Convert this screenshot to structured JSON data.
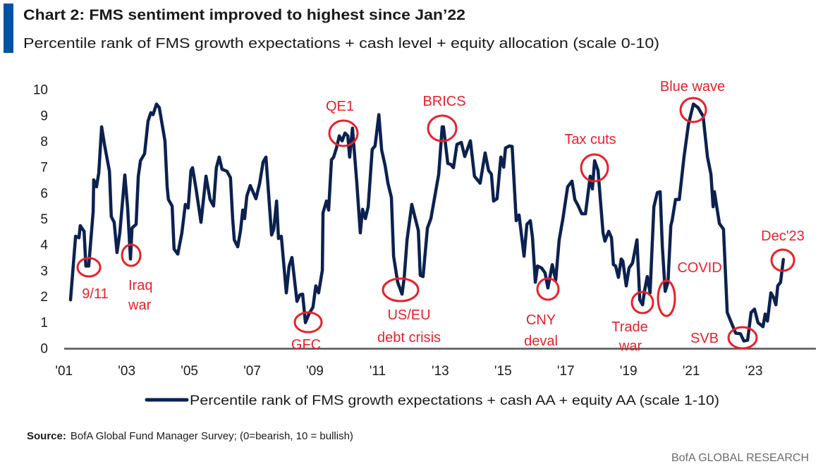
{
  "header": {
    "title": "Chart 2: FMS sentiment improved to highest since Jan’22",
    "subtitle": "Percentile rank of FMS growth expectations + cash level + equity allocation (scale 0-10)"
  },
  "footer": {
    "source_label": "Source:",
    "source_text": "BofA Global Fund Manager Survey; (0=bearish, 10 = bullish)",
    "brand": "BofA GLOBAL RESEARCH"
  },
  "colors": {
    "accent_bar": "#0052a3",
    "line": "#0b2150",
    "annotation": "#e8212a",
    "axis": "#555555"
  },
  "chart_data": {
    "type": "line",
    "title": "Chart 2: FMS sentiment improved to highest since Jan’22",
    "subtitle": "Percentile rank of FMS growth expectations + cash level + equity allocation (scale 0-10)",
    "xlabel": "",
    "ylabel": "",
    "ylim": [
      0,
      10
    ],
    "xlim": [
      2001,
      2025.4
    ],
    "grid": false,
    "legend_position": "bottom",
    "x_ticks": [
      {
        "year": 2001,
        "label": "'01"
      },
      {
        "year": 2003,
        "label": "'03"
      },
      {
        "year": 2005,
        "label": "'05"
      },
      {
        "year": 2007,
        "label": "'07"
      },
      {
        "year": 2009,
        "label": "'09"
      },
      {
        "year": 2011,
        "label": "'11"
      },
      {
        "year": 2013,
        "label": "'13"
      },
      {
        "year": 2015,
        "label": "'15"
      },
      {
        "year": 2017,
        "label": "'17"
      },
      {
        "year": 2019,
        "label": "'19"
      },
      {
        "year": 2021,
        "label": "'21"
      },
      {
        "year": 2023,
        "label": "'23"
      }
    ],
    "y_ticks": [
      "0",
      "1",
      "2",
      "3",
      "4",
      "5",
      "6",
      "7",
      "8",
      "9",
      "10"
    ],
    "series": [
      {
        "name": "Percentile rank of FMS growth expectations + cash AA + equity AA (scale 1-10)",
        "points": [
          [
            2001.21,
            1.86
          ],
          [
            2001.37,
            4.32
          ],
          [
            2001.48,
            4.26
          ],
          [
            2001.52,
            4.73
          ],
          [
            2001.64,
            4.51
          ],
          [
            2001.7,
            3.17
          ],
          [
            2001.79,
            3.17
          ],
          [
            2001.93,
            5.27
          ],
          [
            2001.95,
            6.5
          ],
          [
            2002.04,
            6.23
          ],
          [
            2002.11,
            6.78
          ],
          [
            2002.2,
            8.55
          ],
          [
            2002.29,
            7.87
          ],
          [
            2002.45,
            6.83
          ],
          [
            2002.51,
            5.08
          ],
          [
            2002.6,
            4.86
          ],
          [
            2002.69,
            3.69
          ],
          [
            2002.78,
            4.45
          ],
          [
            2002.94,
            6.69
          ],
          [
            2003.03,
            5.41
          ],
          [
            2003.12,
            3.44
          ],
          [
            2003.17,
            4.64
          ],
          [
            2003.3,
            4.78
          ],
          [
            2003.37,
            6.64
          ],
          [
            2003.44,
            7.24
          ],
          [
            2003.57,
            7.51
          ],
          [
            2003.68,
            8.77
          ],
          [
            2003.77,
            9.1
          ],
          [
            2003.84,
            9.02
          ],
          [
            2003.95,
            9.43
          ],
          [
            2004.04,
            9.29
          ],
          [
            2004.22,
            8.01
          ],
          [
            2004.29,
            6.23
          ],
          [
            2004.33,
            5.74
          ],
          [
            2004.45,
            5.49
          ],
          [
            2004.51,
            3.83
          ],
          [
            2004.63,
            3.63
          ],
          [
            2004.76,
            4.45
          ],
          [
            2004.87,
            5.55
          ],
          [
            2004.96,
            5.41
          ],
          [
            2005.05,
            6.86
          ],
          [
            2005.1,
            6.97
          ],
          [
            2005.21,
            6.17
          ],
          [
            2005.37,
            4.86
          ],
          [
            2005.53,
            6.64
          ],
          [
            2005.66,
            5.74
          ],
          [
            2005.77,
            5.49
          ],
          [
            2005.86,
            6.97
          ],
          [
            2005.95,
            7.38
          ],
          [
            2006.04,
            6.91
          ],
          [
            2006.2,
            6.83
          ],
          [
            2006.31,
            6.58
          ],
          [
            2006.38,
            5.0
          ],
          [
            2006.43,
            4.18
          ],
          [
            2006.54,
            3.91
          ],
          [
            2006.63,
            4.54
          ],
          [
            2006.7,
            5.33
          ],
          [
            2006.76,
            5.0
          ],
          [
            2006.83,
            5.87
          ],
          [
            2006.94,
            6.28
          ],
          [
            2007.12,
            5.77
          ],
          [
            2007.24,
            6.37
          ],
          [
            2007.35,
            7.19
          ],
          [
            2007.44,
            7.38
          ],
          [
            2007.62,
            4.37
          ],
          [
            2007.69,
            4.59
          ],
          [
            2007.78,
            5.68
          ],
          [
            2007.84,
            4.23
          ],
          [
            2007.93,
            4.32
          ],
          [
            2008.09,
            2.13
          ],
          [
            2008.18,
            3.17
          ],
          [
            2008.27,
            3.5
          ],
          [
            2008.43,
            1.8
          ],
          [
            2008.52,
            2.05
          ],
          [
            2008.61,
            2.08
          ],
          [
            2008.7,
            0.98
          ],
          [
            2008.81,
            1.31
          ],
          [
            2008.94,
            1.58
          ],
          [
            2009.03,
            2.4
          ],
          [
            2009.12,
            2.13
          ],
          [
            2009.24,
            3.01
          ],
          [
            2009.26,
            5.22
          ],
          [
            2009.37,
            5.68
          ],
          [
            2009.44,
            5.33
          ],
          [
            2009.53,
            7.27
          ],
          [
            2009.6,
            7.38
          ],
          [
            2009.69,
            7.73
          ],
          [
            2009.78,
            8.2
          ],
          [
            2009.87,
            8.01
          ],
          [
            2009.96,
            8.31
          ],
          [
            2010.05,
            8.2
          ],
          [
            2010.11,
            7.38
          ],
          [
            2010.2,
            8.5
          ],
          [
            2010.34,
            6.37
          ],
          [
            2010.45,
            4.45
          ],
          [
            2010.52,
            5.36
          ],
          [
            2010.61,
            5.0
          ],
          [
            2010.7,
            5.46
          ],
          [
            2010.83,
            7.68
          ],
          [
            2010.92,
            7.81
          ],
          [
            2011.04,
            9.02
          ],
          [
            2011.13,
            7.65
          ],
          [
            2011.24,
            7.05
          ],
          [
            2011.33,
            6.37
          ],
          [
            2011.44,
            5.82
          ],
          [
            2011.51,
            3.55
          ],
          [
            2011.64,
            2.54
          ],
          [
            2011.78,
            2.08
          ],
          [
            2011.85,
            2.73
          ],
          [
            2011.94,
            4.18
          ],
          [
            2012.09,
            5.55
          ],
          [
            2012.3,
            4.54
          ],
          [
            2012.36,
            2.81
          ],
          [
            2012.45,
            2.76
          ],
          [
            2012.59,
            4.64
          ],
          [
            2012.7,
            5.0
          ],
          [
            2012.95,
            6.72
          ],
          [
            2013.06,
            8.55
          ],
          [
            2013.1,
            8.55
          ],
          [
            2013.24,
            7.13
          ],
          [
            2013.33,
            7.1
          ],
          [
            2013.42,
            6.97
          ],
          [
            2013.53,
            7.87
          ],
          [
            2013.67,
            7.95
          ],
          [
            2013.78,
            7.4
          ],
          [
            2013.96,
            8.01
          ],
          [
            2014.09,
            6.64
          ],
          [
            2014.27,
            6.37
          ],
          [
            2014.43,
            7.54
          ],
          [
            2014.54,
            6.86
          ],
          [
            2014.63,
            6.72
          ],
          [
            2014.7,
            5.68
          ],
          [
            2014.81,
            5.77
          ],
          [
            2014.93,
            7.38
          ],
          [
            2015.02,
            6.99
          ],
          [
            2015.08,
            7.73
          ],
          [
            2015.2,
            7.81
          ],
          [
            2015.29,
            7.79
          ],
          [
            2015.42,
            4.92
          ],
          [
            2015.51,
            5.14
          ],
          [
            2015.67,
            3.55
          ],
          [
            2015.76,
            4.78
          ],
          [
            2015.87,
            4.92
          ],
          [
            2015.94,
            4.26
          ],
          [
            2016.03,
            2.54
          ],
          [
            2016.1,
            3.17
          ],
          [
            2016.23,
            3.09
          ],
          [
            2016.34,
            2.9
          ],
          [
            2016.43,
            2.32
          ],
          [
            2016.57,
            3.22
          ],
          [
            2016.68,
            2.62
          ],
          [
            2016.79,
            4.18
          ],
          [
            2016.91,
            5.0
          ],
          [
            2017.06,
            6.23
          ],
          [
            2017.2,
            6.45
          ],
          [
            2017.29,
            5.74
          ],
          [
            2017.4,
            5.49
          ],
          [
            2017.51,
            5.19
          ],
          [
            2017.63,
            5.19
          ],
          [
            2017.78,
            6.64
          ],
          [
            2017.85,
            6.15
          ],
          [
            2017.92,
            7.24
          ],
          [
            2018.03,
            6.86
          ],
          [
            2018.19,
            4.45
          ],
          [
            2018.25,
            4.13
          ],
          [
            2018.37,
            4.51
          ],
          [
            2018.46,
            4.26
          ],
          [
            2018.52,
            3.22
          ],
          [
            2018.59,
            3.17
          ],
          [
            2018.68,
            2.73
          ],
          [
            2018.77,
            3.44
          ],
          [
            2018.82,
            3.36
          ],
          [
            2018.93,
            2.4
          ],
          [
            2019.02,
            3.09
          ],
          [
            2019.13,
            3.28
          ],
          [
            2019.27,
            4.18
          ],
          [
            2019.36,
            1.86
          ],
          [
            2019.45,
            1.67
          ],
          [
            2019.51,
            2.19
          ],
          [
            2019.6,
            2.76
          ],
          [
            2019.69,
            2.13
          ],
          [
            2019.81,
            5.46
          ],
          [
            2019.92,
            6.01
          ],
          [
            2020.01,
            6.04
          ],
          [
            2020.08,
            3.91
          ],
          [
            2020.17,
            2.19
          ],
          [
            2020.26,
            2.54
          ],
          [
            2020.35,
            4.73
          ],
          [
            2020.39,
            4.92
          ],
          [
            2020.5,
            5.74
          ],
          [
            2020.62,
            5.74
          ],
          [
            2020.77,
            7.38
          ],
          [
            2020.91,
            8.63
          ],
          [
            2021.07,
            9.43
          ],
          [
            2021.22,
            9.29
          ],
          [
            2021.38,
            8.96
          ],
          [
            2021.52,
            7.38
          ],
          [
            2021.63,
            6.72
          ],
          [
            2021.7,
            5.46
          ],
          [
            2021.74,
            6.04
          ],
          [
            2021.9,
            4.81
          ],
          [
            2022.03,
            4.59
          ],
          [
            2022.15,
            1.37
          ],
          [
            2022.28,
            0.98
          ],
          [
            2022.42,
            0.57
          ],
          [
            2022.57,
            0.55
          ],
          [
            2022.68,
            0.27
          ],
          [
            2022.8,
            0.3
          ],
          [
            2022.91,
            1.37
          ],
          [
            2023.02,
            1.5
          ],
          [
            2023.13,
            0.98
          ],
          [
            2023.29,
            0.82
          ],
          [
            2023.36,
            1.31
          ],
          [
            2023.43,
            1.04
          ],
          [
            2023.54,
            2.13
          ],
          [
            2023.63,
            1.94
          ],
          [
            2023.7,
            1.67
          ],
          [
            2023.76,
            2.4
          ],
          [
            2023.85,
            2.54
          ],
          [
            2023.94,
            3.42
          ]
        ]
      }
    ],
    "annotations": [
      {
        "label": "9/11",
        "year": 2001.75,
        "value": 3.2
      },
      {
        "label": "Iraq war",
        "year": 2003.12,
        "value": 3.6
      },
      {
        "label": "GFC",
        "year": 2008.78,
        "value": 1.0
      },
      {
        "label": "QE1",
        "year": 2009.91,
        "value": 8.3
      },
      {
        "label": "BRICS",
        "year": 2013.06,
        "value": 8.5
      },
      {
        "label": "US/EU debt crisis",
        "year": 2011.73,
        "value": 2.2
      },
      {
        "label": "CNY deval",
        "year": 2016.43,
        "value": 2.3
      },
      {
        "label": "Tax cuts",
        "year": 2017.92,
        "value": 7.0
      },
      {
        "label": "Blue wave",
        "year": 2021.07,
        "value": 9.2
      },
      {
        "label": "Trade war",
        "year": 2019.45,
        "value": 1.75
      },
      {
        "label": "COVID",
        "year": 2020.21,
        "value": 1.9
      },
      {
        "label": "SVB",
        "year": 2022.64,
        "value": 0.4
      },
      {
        "label": "Dec'23",
        "year": 2023.92,
        "value": 3.4
      }
    ]
  },
  "annotation_text": {
    "a911": "9/11",
    "iraq_1": "Iraq",
    "iraq_2": "war",
    "gfc": "GFC",
    "qe1": "QE1",
    "brics": "BRICS",
    "useu_1": "US/EU",
    "useu_2": "debt crisis",
    "cny_1": "CNY",
    "cny_2": "deval",
    "taxcuts": "Tax cuts",
    "bluewave": "Blue wave",
    "trade_1": "Trade",
    "trade_2": "war",
    "covid": "COVID",
    "svb": "SVB",
    "dec23": "Dec'23"
  }
}
